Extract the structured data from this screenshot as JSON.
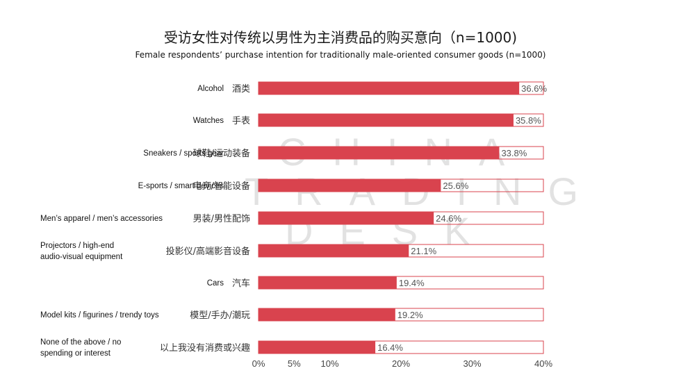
{
  "title": "受访女性对传统以男性为主消费品的购买意向（n=1000)",
  "subtitle": "Female respondents’ purchase intention for traditionally male-oriented consumer goods (n=1000)",
  "watermark": {
    "line1": "CHINA",
    "line2": "TRADING",
    "line3": "DESK"
  },
  "colors": {
    "bar": "#d9434e",
    "track_border": "#d9434e",
    "text": "#111111",
    "value_text": "#555555"
  },
  "chart_data": {
    "type": "bar",
    "orientation": "horizontal",
    "categories": [
      {
        "en": "Alcohol",
        "zh": "酒类"
      },
      {
        "en": "Watches",
        "zh": "手表"
      },
      {
        "en": "Sneakers / sports gear",
        "zh": "球鞋/运动装备"
      },
      {
        "en": "E-sports / smart devices",
        "zh": "电竞/智能设备"
      },
      {
        "en": "Men’s apparel / men’s accessories",
        "zh": "男装/男性配饰"
      },
      {
        "en": "Projectors / high-end audio-visual equipment",
        "zh": "投影仪/高端影音设备"
      },
      {
        "en": "Cars",
        "zh": "汽车"
      },
      {
        "en": "Model kits / figurines / trendy toys",
        "zh": "模型/手办/潮玩"
      },
      {
        "en": "None of the above / no spending or interest",
        "zh": "以上我没有消费或兴趣"
      }
    ],
    "values": [
      36.6,
      35.8,
      33.8,
      25.6,
      24.6,
      21.1,
      19.4,
      19.2,
      16.4
    ],
    "value_labels": [
      "36.6%",
      "35.8%",
      "33.8%",
      "25.6%",
      "24.6%",
      "21.1%",
      "19.4%",
      "19.2%",
      "16.4%"
    ],
    "xlim": [
      0,
      40
    ],
    "xticks": [
      "0%",
      "5%",
      "10%",
      "20%",
      "30%",
      "40%"
    ],
    "xtick_values": [
      0,
      5,
      10,
      20,
      30,
      40
    ],
    "grid": false,
    "legend": "none"
  }
}
